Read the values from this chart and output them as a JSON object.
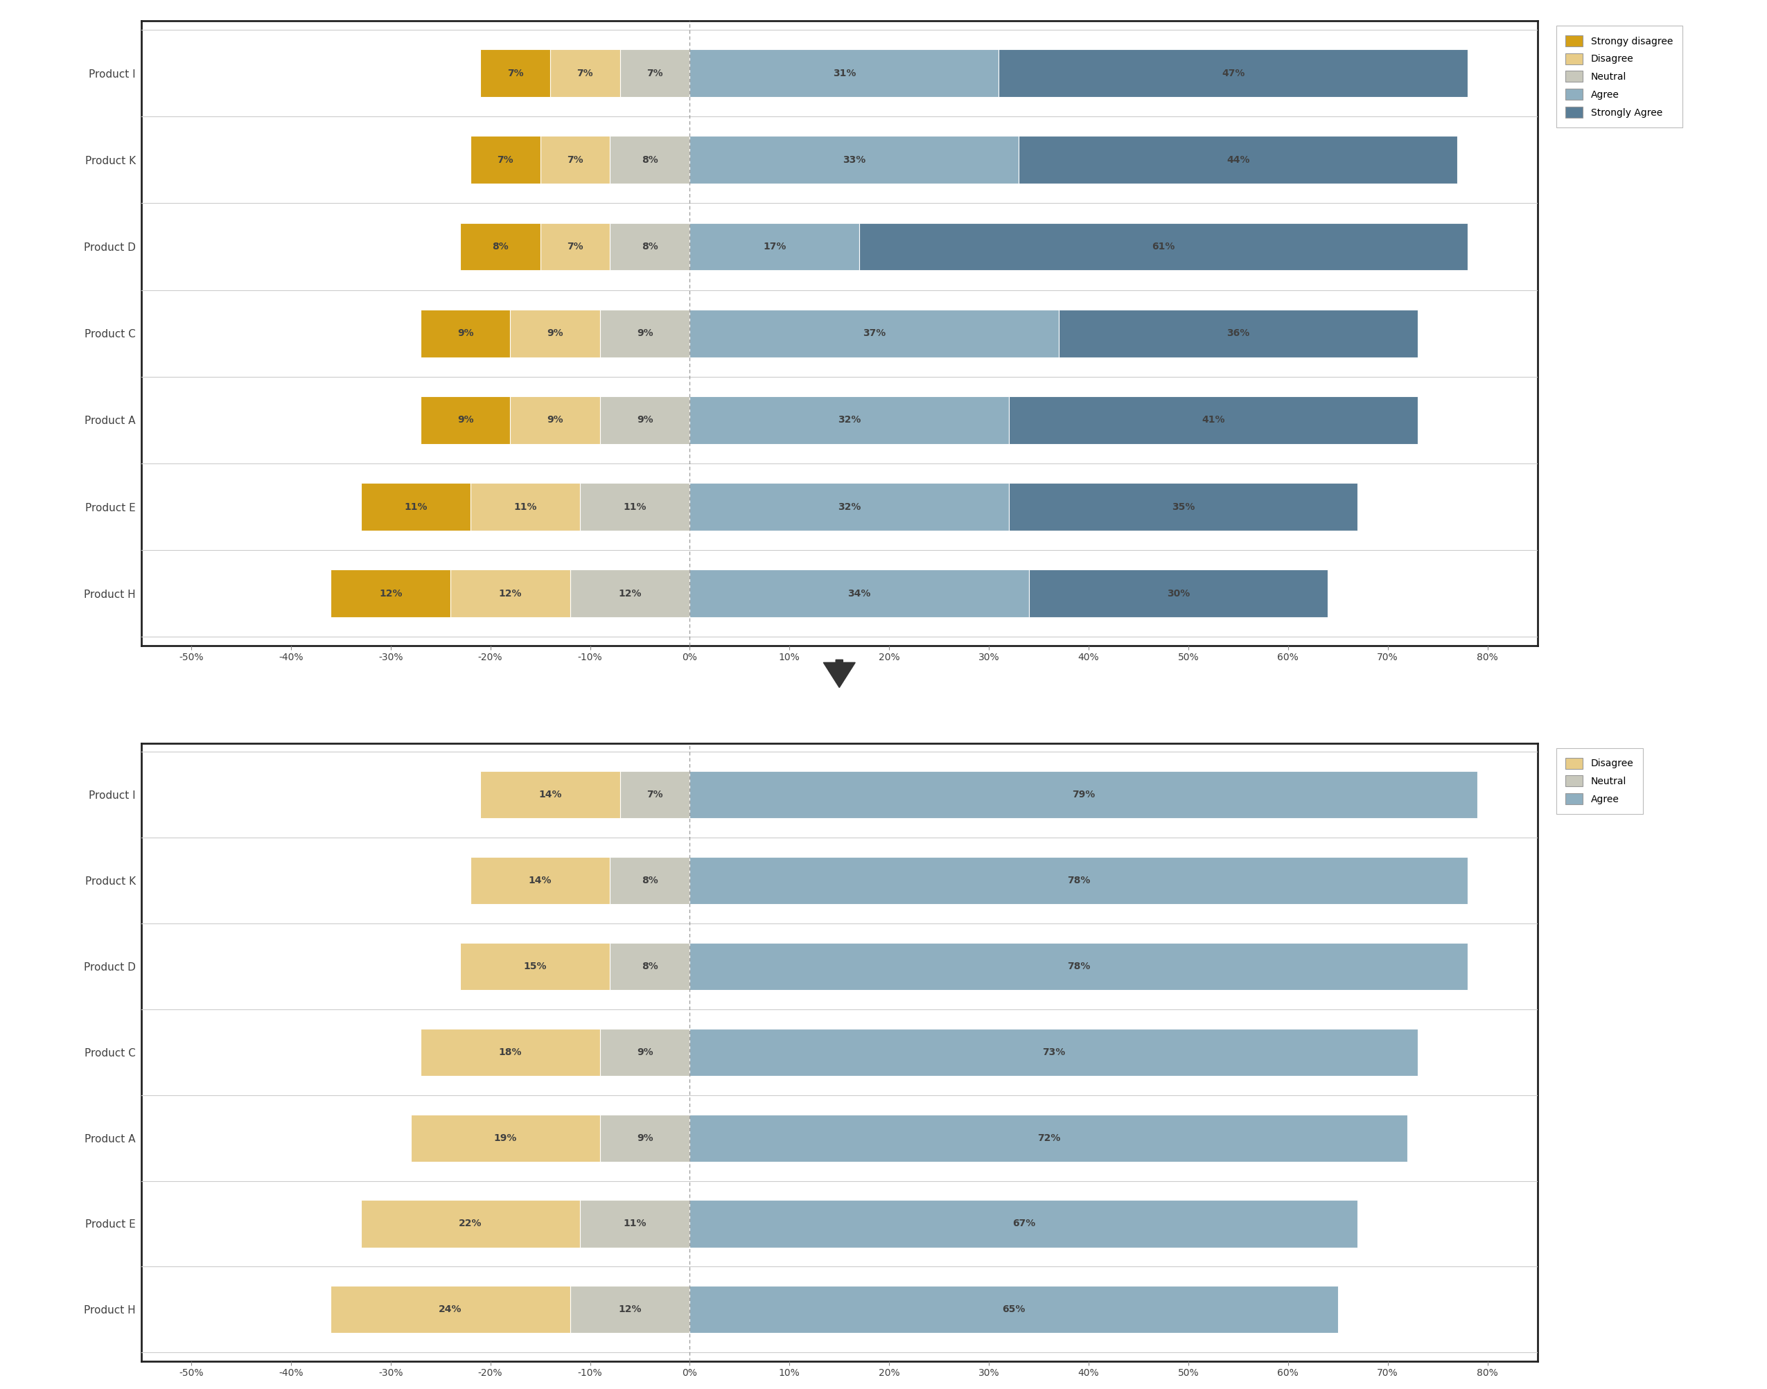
{
  "top_chart": {
    "products": [
      "Product I",
      "Product K",
      "Product D",
      "Product C",
      "Product A",
      "Product E",
      "Product H"
    ],
    "strongly_disagree": [
      7,
      7,
      8,
      9,
      9,
      11,
      12
    ],
    "disagree": [
      7,
      7,
      7,
      9,
      9,
      11,
      12
    ],
    "neutral": [
      7,
      8,
      8,
      9,
      9,
      11,
      12
    ],
    "agree": [
      31,
      33,
      17,
      37,
      32,
      32,
      34
    ],
    "strongly_agree": [
      47,
      44,
      61,
      36,
      41,
      35,
      30
    ],
    "colors": {
      "strongly_disagree": "#D4A017",
      "disagree": "#E8CC88",
      "neutral": "#C8C8BC",
      "agree": "#8FAFC0",
      "strongly_agree": "#5A7D96"
    },
    "legend_labels": [
      "Strongy disagree",
      "Disagree",
      "Neutral",
      "Agree",
      "Strongly Agree"
    ],
    "xlim": [
      -55,
      85
    ],
    "xticks": [
      -50,
      -40,
      -30,
      -20,
      -10,
      0,
      10,
      20,
      30,
      40,
      50,
      60,
      70,
      80
    ],
    "xticklabels": [
      "-50%",
      "-40%",
      "-30%",
      "-20%",
      "-10%",
      "0%",
      "10%",
      "20%",
      "30%",
      "40%",
      "50%",
      "60%",
      "70%",
      "80%"
    ]
  },
  "bottom_chart": {
    "products": [
      "Product I",
      "Product K",
      "Product D",
      "Product C",
      "Product A",
      "Product E",
      "Product H"
    ],
    "disagree": [
      14,
      14,
      15,
      18,
      19,
      22,
      24
    ],
    "neutral": [
      7,
      8,
      8,
      9,
      9,
      11,
      12
    ],
    "agree": [
      79,
      78,
      78,
      73,
      72,
      67,
      65
    ],
    "colors": {
      "disagree": "#E8CC88",
      "neutral": "#C8C8BC",
      "agree": "#8FAFC0"
    },
    "legend_labels": [
      "Disagree",
      "Neutral",
      "Agree"
    ],
    "xlim": [
      -55,
      85
    ],
    "xticks": [
      -50,
      -40,
      -30,
      -20,
      -10,
      0,
      10,
      20,
      30,
      40,
      50,
      60,
      70,
      80
    ],
    "xticklabels": [
      "-50%",
      "-40%",
      "-30%",
      "-20%",
      "-10%",
      "0%",
      "10%",
      "20%",
      "30%",
      "40%",
      "50%",
      "60%",
      "70%",
      "80%"
    ]
  },
  "arrow_color": "#333333",
  "background_color": "#ffffff",
  "border_color": "#222222",
  "text_color": "#404040",
  "font_size_labels": 11,
  "font_size_ticks": 10,
  "font_size_bar": 10,
  "bar_height": 0.55
}
